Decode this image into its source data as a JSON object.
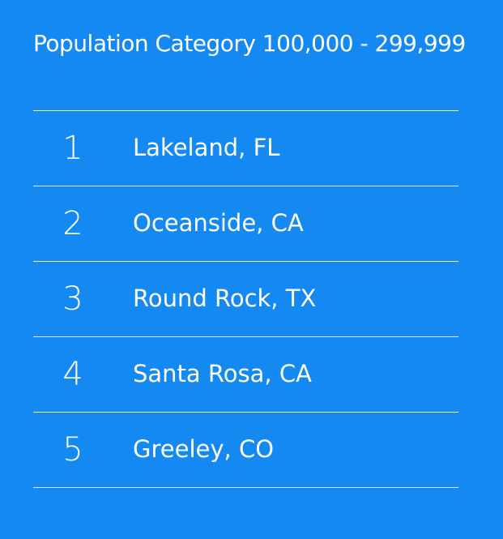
{
  "title": "Population Category 100,000 - 299,999",
  "rankings": [
    {
      "rank": "1",
      "city": "Lakeland, FL"
    },
    {
      "rank": "2",
      "city": "Oceanside, CA"
    },
    {
      "rank": "3",
      "city": "Round Rock, TX"
    },
    {
      "rank": "4",
      "city": "Santa Rosa, CA"
    },
    {
      "rank": "5",
      "city": "Greeley, CO"
    }
  ],
  "colors": {
    "background": "#1589f2",
    "text": "#ffffff"
  }
}
